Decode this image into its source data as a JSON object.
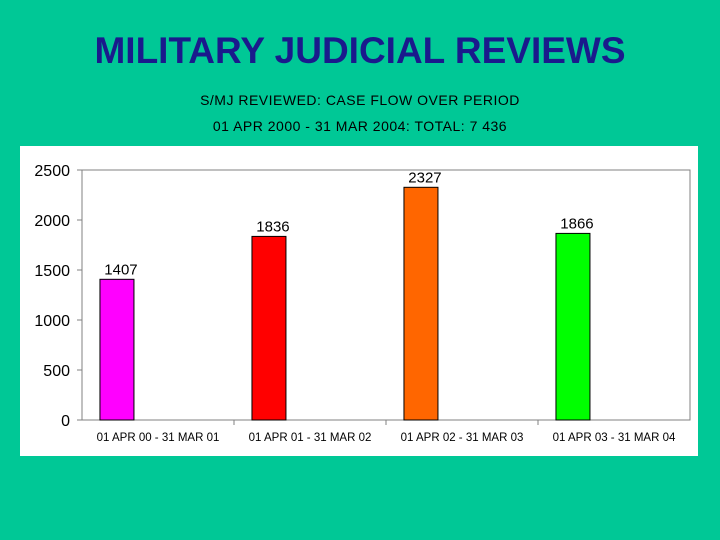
{
  "header": {
    "title": "MILITARY JUDICIAL REVIEWS",
    "subtitle_line1": "S/MJ REVIEWED: CASE FLOW OVER PERIOD",
    "subtitle_line2": "01 APR 2000 - 31 MAR 2004: TOTAL: 7 436"
  },
  "colors": {
    "background": "#00C896",
    "title": "#1A1A8C",
    "plot_background": "#FFFFFF"
  },
  "chart_data": {
    "type": "bar",
    "categories": [
      "01 APR 00 - 31 MAR 01",
      "01 APR 01 - 31 MAR 02",
      "01 APR 02 - 31 MAR 03",
      "01 APR 03 - 31 MAR 04"
    ],
    "values": [
      1407,
      1836,
      2327,
      1866
    ],
    "data_labels": [
      "1407",
      "1836",
      "2327",
      "1866"
    ],
    "bar_colors": [
      "#FF00FF",
      "#FF0000",
      "#FF6600",
      "#00FF00"
    ],
    "ylim": [
      0,
      2500
    ],
    "yticks": [
      0,
      500,
      1000,
      1500,
      2000,
      2500
    ],
    "grid": false,
    "legend": "none"
  }
}
